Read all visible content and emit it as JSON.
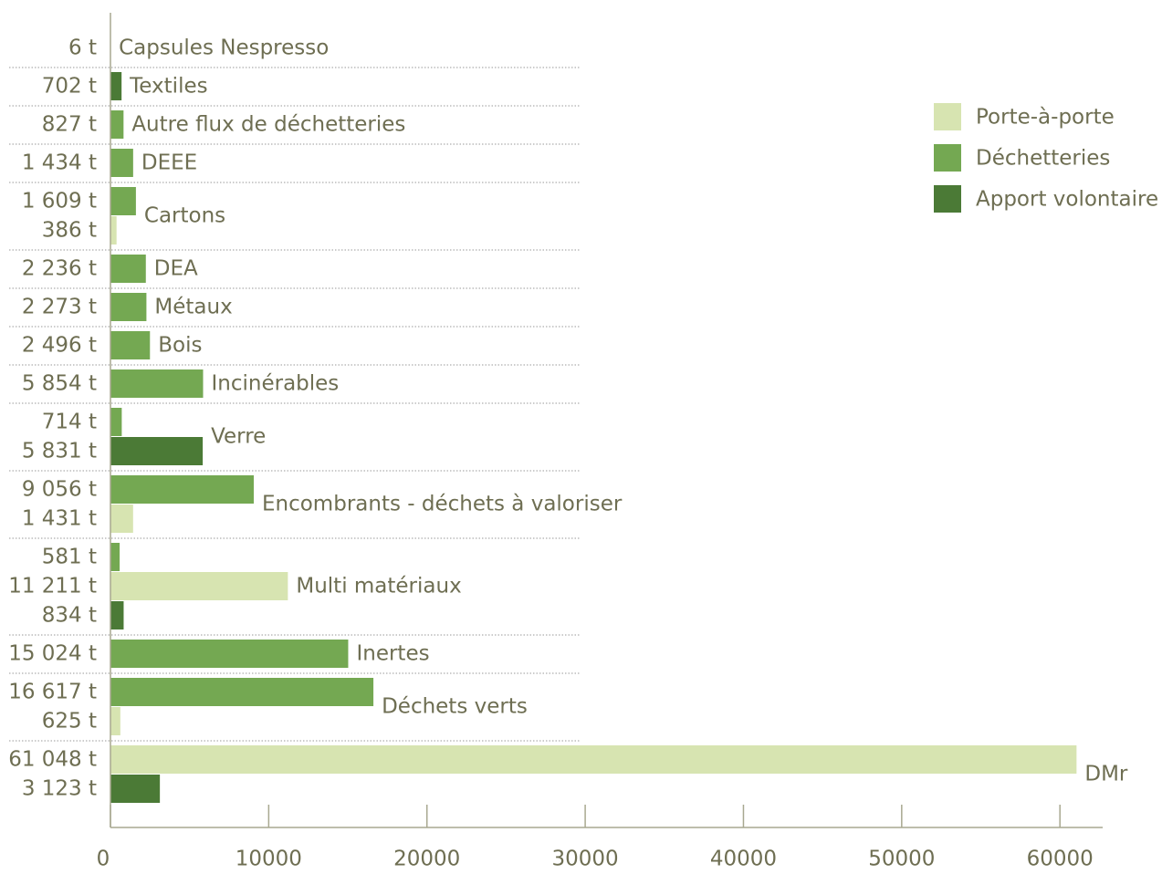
{
  "chart_data": {
    "type": "hbar",
    "categories": [
      "Capsules Nespresso",
      "Textiles",
      "Autre flux de déchetteries",
      "DEEE",
      "Cartons",
      "DEA",
      "Métaux",
      "Bois",
      "Incinérables",
      "Verre",
      "Encombrants - déchets à valoriser",
      "Multi matériaux",
      "Inertes",
      "Déchets verts",
      "DMr"
    ],
    "series": [
      {
        "name": "Porte-à-porte",
        "color": "#d7e4b1",
        "values": [
          null,
          null,
          null,
          null,
          386,
          null,
          null,
          null,
          null,
          null,
          1431,
          11211,
          null,
          625,
          61048
        ],
        "value_labels": [
          null,
          null,
          null,
          null,
          "386 t",
          null,
          null,
          null,
          null,
          null,
          "1 431 t",
          "11 211 t",
          null,
          "625 t",
          "61 048 t"
        ]
      },
      {
        "name": "Déchetteries",
        "color": "#74a852",
        "values": [
          6,
          null,
          827,
          1434,
          1609,
          2236,
          2273,
          2496,
          5854,
          714,
          9056,
          581,
          15024,
          16617,
          null
        ],
        "value_labels": [
          "6 t",
          null,
          "827 t",
          "1 434 t",
          "1 609 t",
          "2 236 t",
          "2 273 t",
          "2 496 t",
          "5 854 t",
          "714 t",
          "9 056 t",
          "581 t",
          "15 024 t",
          "16 617 t",
          null
        ]
      },
      {
        "name": "Apport volontaire",
        "color": "#4b7a36",
        "values": [
          null,
          702,
          null,
          null,
          null,
          null,
          null,
          null,
          null,
          5831,
          null,
          834,
          null,
          null,
          3123
        ],
        "value_labels": [
          null,
          "702 t",
          null,
          null,
          null,
          null,
          null,
          null,
          null,
          "5 831 t",
          null,
          "834 t",
          null,
          null,
          "3 123 t"
        ]
      }
    ],
    "xlim": [
      0,
      62700
    ],
    "xticks": [
      0,
      10000,
      20000,
      30000,
      40000,
      50000,
      60000
    ],
    "legend": "upper right"
  }
}
